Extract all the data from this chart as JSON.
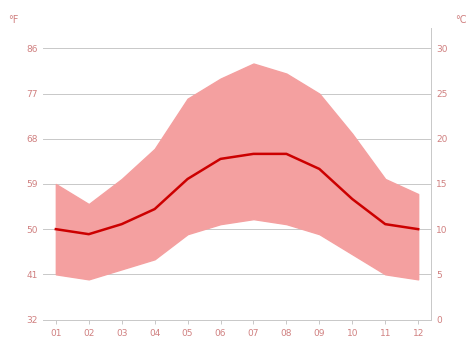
{
  "months": [
    1,
    2,
    3,
    4,
    5,
    6,
    7,
    8,
    9,
    10,
    11,
    12
  ],
  "month_labels": [
    "01",
    "02",
    "03",
    "04",
    "05",
    "06",
    "07",
    "08",
    "09",
    "10",
    "11",
    "12"
  ],
  "avg_temp_f": [
    50,
    49,
    51,
    54,
    60,
    64,
    65,
    65,
    62,
    56,
    51,
    50
  ],
  "max_temp_f": [
    59,
    55,
    60,
    66,
    76,
    80,
    83,
    81,
    77,
    69,
    60,
    57
  ],
  "min_temp_f": [
    41,
    40,
    42,
    44,
    49,
    51,
    52,
    51,
    49,
    45,
    41,
    40
  ],
  "yticks_f": [
    32,
    41,
    50,
    59,
    68,
    77,
    86
  ],
  "yticks_c": [
    0,
    5,
    10,
    15,
    20,
    25,
    30
  ],
  "band_color": "#f4a0a0",
  "line_color": "#cc0000",
  "grid_color": "#c8c8c8",
  "background_color": "#ffffff",
  "tick_label_color": "#d08080",
  "ylim_f": [
    32,
    90
  ],
  "xlim": [
    0.6,
    12.4
  ]
}
